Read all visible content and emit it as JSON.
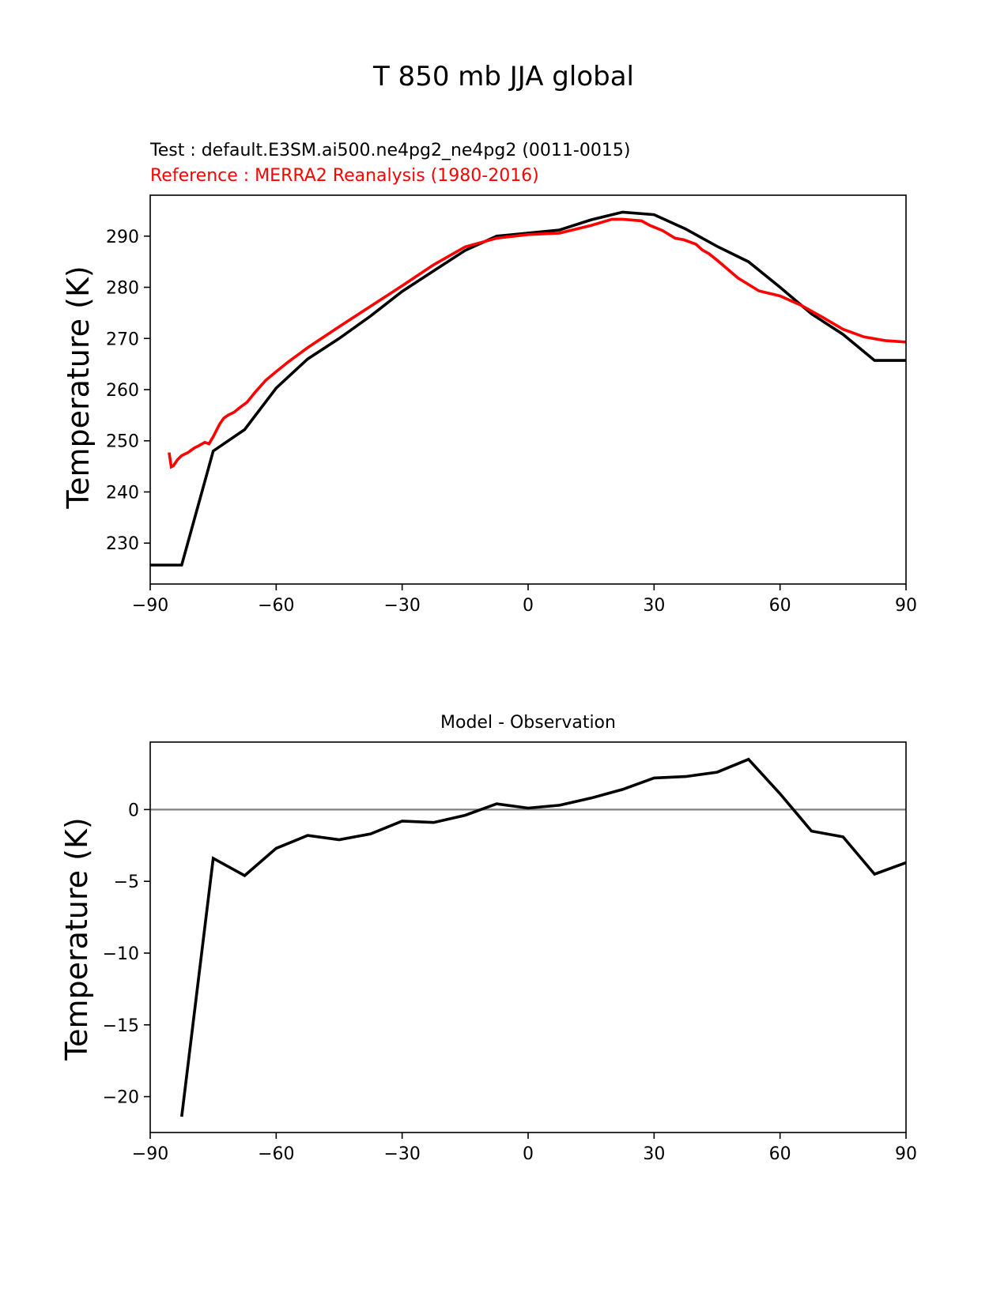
{
  "figure": {
    "suptitle": "T 850 mb JJA global"
  },
  "chart_data": [
    {
      "type": "line",
      "test_label": "Test : default.E3SM.ai500.ne4pg2_ne4pg2 (0011-0015)",
      "reference_label": "Reference : MERRA2 Reanalysis (1980-2016)",
      "xlabel": "",
      "ylabel": "Temperature (K)",
      "xlim": [
        -90,
        90
      ],
      "ylim": [
        222,
        298
      ],
      "xticks": [
        -90,
        -60,
        -30,
        0,
        30,
        60,
        90
      ],
      "yticks": [
        230,
        240,
        250,
        260,
        270,
        280,
        290
      ],
      "xtick_labels": [
        "−90",
        "−60",
        "−30",
        "0",
        "30",
        "60",
        "90"
      ],
      "ytick_labels": [
        "230",
        "240",
        "250",
        "260",
        "270",
        "280",
        "290"
      ],
      "series": [
        {
          "name": "Test",
          "color": "#000000",
          "x": [
            -90,
            -82.5,
            -75,
            -67.5,
            -60,
            -52.5,
            -45,
            -37.5,
            -30,
            -22.5,
            -15,
            -7.5,
            0,
            7.5,
            15,
            22.5,
            30,
            37.5,
            45,
            52.5,
            60,
            67.5,
            75,
            82.5,
            90
          ],
          "y": [
            225.7,
            225.7,
            248.0,
            252.2,
            260.3,
            266.0,
            270.0,
            274.4,
            279.2,
            283.2,
            287.2,
            290.0,
            290.6,
            291.2,
            293.2,
            294.7,
            294.2,
            291.4,
            288.0,
            285.0,
            280.0,
            274.8,
            270.8,
            265.7,
            265.7
          ]
        },
        {
          "name": "Reference",
          "color": "#ff0000",
          "x": [
            -85.5,
            -85.0,
            -84.5,
            -83.5,
            -82.5,
            -81.0,
            -79.5,
            -78.5,
            -77.0,
            -76.0,
            -75.0,
            -73.5,
            -72.5,
            -71.5,
            -70.0,
            -68.5,
            -67.0,
            -65.0,
            -62.5,
            -60.0,
            -57.0,
            -52.5,
            -45.0,
            -37.5,
            -30.0,
            -22.5,
            -15.0,
            -7.5,
            0.0,
            7.5,
            15.0,
            20.0,
            22.5,
            27.0,
            29.0,
            32.0,
            35.0,
            37.0,
            40.0,
            41.5,
            43.0,
            45.0,
            50.0,
            55.0,
            60.0,
            65.0,
            70.0,
            75.0,
            80.0,
            85.0,
            90.0
          ],
          "y": [
            247.7,
            244.9,
            245.1,
            246.3,
            247.1,
            247.7,
            248.6,
            249.0,
            249.7,
            249.4,
            250.8,
            253.2,
            254.4,
            255.0,
            255.6,
            256.6,
            257.5,
            259.5,
            261.8,
            263.5,
            265.5,
            268.2,
            272.3,
            276.3,
            280.3,
            284.4,
            287.9,
            289.6,
            290.3,
            290.6,
            292.1,
            293.3,
            293.3,
            293.0,
            292.1,
            291.1,
            289.6,
            289.3,
            288.4,
            287.3,
            286.6,
            285.3,
            281.8,
            279.3,
            278.3,
            276.5,
            274.2,
            271.8,
            270.3,
            269.6,
            269.3
          ]
        }
      ]
    },
    {
      "type": "line",
      "title": "Model - Observation",
      "xlabel": "",
      "ylabel": "Temperature (K)",
      "xlim": [
        -90,
        90
      ],
      "ylim": [
        -22.5,
        4.7
      ],
      "xticks": [
        -90,
        -60,
        -30,
        0,
        30,
        60,
        90
      ],
      "yticks": [
        -20,
        -15,
        -10,
        -5,
        0
      ],
      "xtick_labels": [
        "−90",
        "−60",
        "−30",
        "0",
        "30",
        "60",
        "90"
      ],
      "ytick_labels": [
        "−20",
        "−15",
        "−10",
        "−5",
        "0"
      ],
      "zero_line_color": "#808080",
      "series": [
        {
          "name": "Model - Observation",
          "color": "#000000",
          "x": [
            -82.5,
            -75,
            -67.5,
            -60,
            -52.5,
            -45,
            -37.5,
            -30,
            -22.5,
            -15,
            -7.5,
            0,
            7.5,
            15,
            22.5,
            30,
            37.5,
            45,
            52.5,
            60,
            67.5,
            75,
            82.5,
            90
          ],
          "y": [
            -21.4,
            -3.4,
            -4.6,
            -2.7,
            -1.8,
            -2.1,
            -1.7,
            -0.8,
            -0.9,
            -0.4,
            0.4,
            0.1,
            0.3,
            0.8,
            1.4,
            2.2,
            2.3,
            2.6,
            3.5,
            1.1,
            -1.5,
            -1.9,
            -4.5,
            -3.7
          ]
        }
      ]
    }
  ]
}
